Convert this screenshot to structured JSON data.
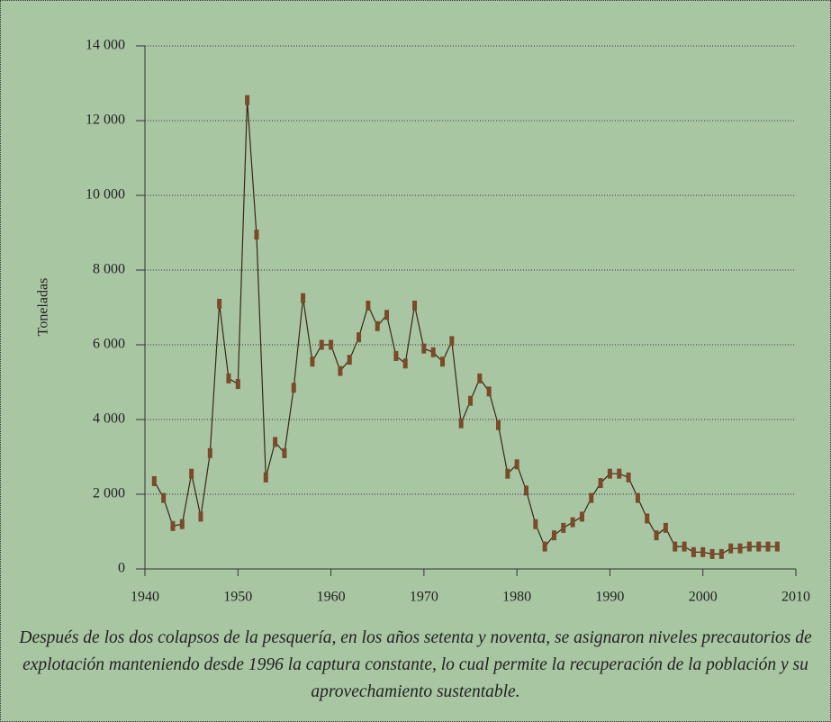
{
  "chart_data": {
    "type": "line",
    "y_label": "Toneladas",
    "annotation": "Después de los dos colapsos de la pesquería, en los años setenta y noventa, se asignaron niveles precautorios de explotación manteniendo desde 1996 la captura constante, lo cual permite la recuperación de la población y su aprovechamiento sustentable.",
    "x": [
      1941,
      1942,
      1943,
      1944,
      1945,
      1946,
      1947,
      1948,
      1949,
      1950,
      1951,
      1952,
      1953,
      1954,
      1955,
      1956,
      1957,
      1958,
      1959,
      1960,
      1961,
      1962,
      1963,
      1964,
      1965,
      1966,
      1967,
      1968,
      1969,
      1970,
      1971,
      1972,
      1973,
      1974,
      1975,
      1976,
      1977,
      1978,
      1979,
      1980,
      1981,
      1982,
      1983,
      1984,
      1985,
      1986,
      1987,
      1988,
      1989,
      1990,
      1991,
      1992,
      1993,
      1994,
      1995,
      1996,
      1997,
      1998,
      1999,
      2000,
      2001,
      2002,
      2003,
      2004,
      2005,
      2006,
      2007,
      2008
    ],
    "values": [
      2350,
      1900,
      1150,
      1200,
      2550,
      1400,
      3100,
      7100,
      5100,
      4950,
      12550,
      8950,
      2450,
      3400,
      3100,
      4850,
      7250,
      5550,
      6000,
      6000,
      5300,
      5600,
      6200,
      7050,
      6500,
      6800,
      5700,
      5500,
      7050,
      5900,
      5800,
      5550,
      6100,
      3900,
      4500,
      5100,
      4750,
      3850,
      2550,
      2800,
      2100,
      1200,
      600,
      900,
      1100,
      1250,
      1400,
      1900,
      2300,
      2550,
      2550,
      2450,
      1900,
      1350,
      900,
      1100,
      600,
      600,
      450,
      450,
      400,
      400,
      550,
      550,
      600,
      600,
      600,
      600
    ],
    "color": "#3a2616",
    "marker_color": "#7a4a2a",
    "xlim": [
      1940,
      2010
    ],
    "xticks": [
      1940,
      1950,
      1960,
      1970,
      1980,
      1990,
      2000,
      2010
    ],
    "ylim": [
      0,
      14000
    ],
    "yticks": [
      0,
      {
        "value": 2000,
        "label": "2 000"
      },
      {
        "value": 4000,
        "label": "4 000"
      },
      {
        "value": 6000,
        "label": "6 000"
      },
      {
        "value": 8000,
        "label": "8 000"
      },
      {
        "value": 10000,
        "label": "10 000"
      },
      {
        "value": 12000,
        "label": "12 000"
      },
      {
        "value": 14000,
        "label": "14 000"
      }
    ],
    "grid": true
  }
}
